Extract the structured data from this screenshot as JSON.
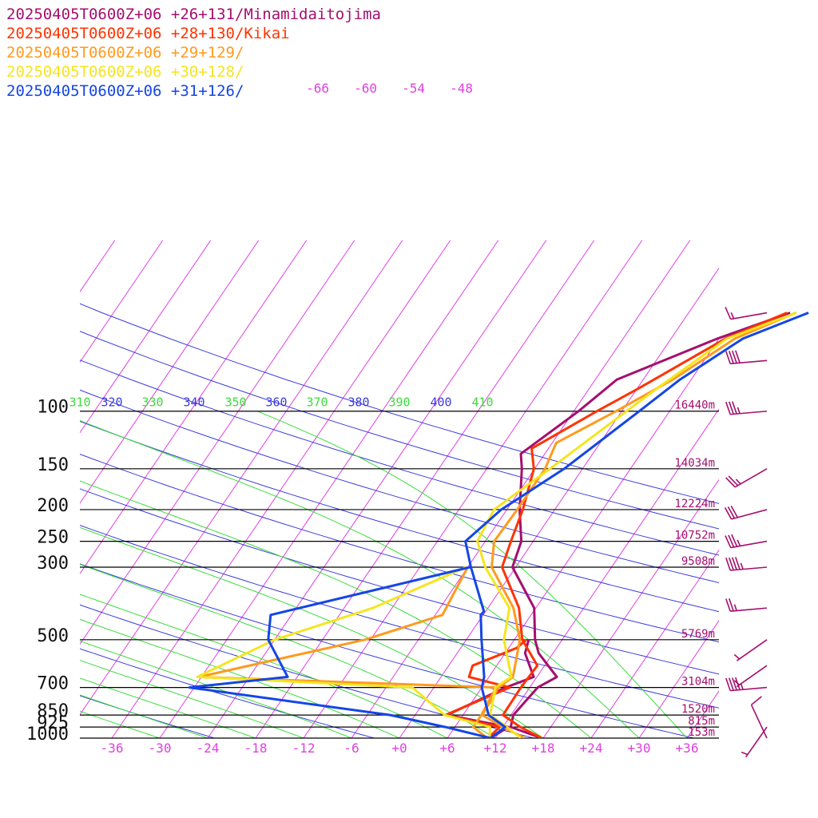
{
  "legend": [
    {
      "label": "20250405T0600Z+06 +26+131/Minamidaitojima",
      "color": "#a50f6e"
    },
    {
      "label": "20250405T0600Z+06 +28+130/Kikai",
      "color": "#ff3300"
    },
    {
      "label": "20250405T0600Z+06 +29+129/",
      "color": "#ff9a1e"
    },
    {
      "label": "20250405T0600Z+06 +30+128/",
      "color": "#f5e51e"
    },
    {
      "label": "20250405T0600Z+06 +31+126/",
      "color": "#1446e6"
    }
  ],
  "colors": {
    "isobar": "#000000",
    "isotherm": "#e040e0",
    "dry_adiabat": "#3c3cdc",
    "moist_adiabat": "#3cdc3c",
    "height_label": "#a50f6e",
    "wind_barb": "#a50f6e"
  },
  "chart_data": {
    "type": "line",
    "xlabel": "",
    "ylabel": "",
    "pressure_levels": [
      {
        "p": 1000,
        "label": "1000",
        "height": "153m"
      },
      {
        "p": 925,
        "label": "925",
        "height": "815m"
      },
      {
        "p": 850,
        "label": "850",
        "height": "1520m"
      },
      {
        "p": 700,
        "label": "700",
        "height": "3104m"
      },
      {
        "p": 500,
        "label": "500",
        "height": "5769m"
      },
      {
        "p": 300,
        "label": "300",
        "height": "9508m"
      },
      {
        "p": 250,
        "label": "250",
        "height": "10752m"
      },
      {
        "p": 200,
        "label": "200",
        "height": "12224m"
      },
      {
        "p": 150,
        "label": "150",
        "height": "14034m"
      },
      {
        "p": 100,
        "label": "100",
        "height": "16440m"
      }
    ],
    "temperature_ticks": [
      "-36",
      "-30",
      "-24",
      "-18",
      "-12",
      "-6",
      "+0",
      "+6",
      "+12",
      "+18",
      "+24",
      "+30",
      "+36"
    ],
    "upper_isotherm_labels": [
      "-66",
      "-60",
      "-54",
      "-48"
    ],
    "theta_labels": [
      "310",
      "320",
      "330",
      "340",
      "350",
      "360",
      "370",
      "380",
      "390",
      "400",
      "410"
    ],
    "x_range": [
      -40,
      40
    ],
    "series": [
      {
        "name": "20250405T0600Z+06 +26+131/Minamidaitojima",
        "temperature": [
          [
            1000,
            17.8
          ],
          [
            925,
            13.0
          ],
          [
            850,
            12.3
          ],
          [
            700,
            13.0
          ],
          [
            650,
            14.5
          ],
          [
            550,
            10.2
          ],
          [
            500,
            8.6
          ],
          [
            400,
            5.8
          ],
          [
            300,
            -0.4
          ],
          [
            250,
            -1.5
          ],
          [
            200,
            -4.4
          ],
          [
            150,
            -7.6
          ],
          [
            135,
            -9.0
          ],
          [
            100,
            -5.4
          ],
          [
            80,
            -3.3
          ],
          [
            60,
            5.8
          ],
          [
            50,
            12.7
          ]
        ],
        "dewpoint": [
          [
            1000,
            11.4
          ],
          [
            925,
            12.7
          ],
          [
            850,
            4.0
          ],
          [
            700,
            9.0
          ],
          [
            650,
            11.6
          ],
          [
            550,
            8.5
          ],
          [
            500,
            7.8
          ]
        ]
      },
      {
        "name": "20250405T0600Z+06 +28+130/Kikai",
        "temperature": [
          [
            1000,
            17.8
          ],
          [
            925,
            14.2
          ],
          [
            850,
            11.0
          ],
          [
            700,
            10.9
          ],
          [
            600,
            11.1
          ],
          [
            500,
            7.0
          ],
          [
            400,
            3.9
          ],
          [
            300,
            -1.7
          ],
          [
            250,
            -2.8
          ],
          [
            200,
            -4.0
          ],
          [
            150,
            -6.1
          ],
          [
            130,
            -8.1
          ],
          [
            100,
            -3.1
          ],
          [
            85,
            0.2
          ],
          [
            60,
            6.8
          ],
          [
            50,
            12.3
          ]
        ],
        "dewpoint": [
          [
            1000,
            11.1
          ],
          [
            925,
            11.6
          ],
          [
            850,
            3.8
          ],
          [
            700,
            9.5
          ],
          [
            650,
            3.5
          ],
          [
            600,
            3.0
          ],
          [
            530,
            7.0
          ],
          [
            500,
            7.5
          ]
        ]
      },
      {
        "name": "20250405T0600Z+06 +29+129/",
        "temperature": [
          [
            1000,
            15.7
          ],
          [
            925,
            12.0
          ],
          [
            850,
            8.4
          ],
          [
            700,
            8.1
          ],
          [
            650,
            9.0
          ],
          [
            500,
            6.7
          ],
          [
            400,
            3.2
          ],
          [
            300,
            -3.0
          ],
          [
            250,
            -4.9
          ],
          [
            200,
            -4.7
          ],
          [
            150,
            -4.7
          ],
          [
            125,
            -5.5
          ],
          [
            100,
            -0.7
          ],
          [
            80,
            3.7
          ],
          [
            60,
            8.0
          ],
          [
            50,
            13.4
          ]
        ],
        "dewpoint": [
          [
            1000,
            11.0
          ],
          [
            925,
            8.3
          ],
          [
            850,
            8.3
          ],
          [
            700,
            7.8
          ],
          [
            650,
            -30.3
          ],
          [
            500,
            -12.7
          ],
          [
            420,
            -5.1
          ],
          [
            300,
            -6.0
          ]
        ]
      },
      {
        "name": "20250405T0600Z+06 +30+128/",
        "temperature": [
          [
            1000,
            15.2
          ],
          [
            925,
            12.5
          ],
          [
            850,
            9.4
          ],
          [
            700,
            7.7
          ],
          [
            650,
            8.8
          ],
          [
            500,
            4.7
          ],
          [
            400,
            2.7
          ],
          [
            300,
            -3.8
          ],
          [
            250,
            -7.0
          ],
          [
            200,
            -7.6
          ],
          [
            150,
            -4.1
          ],
          [
            100,
            0.6
          ],
          [
            85,
            2.5
          ],
          [
            60,
            7.0
          ],
          [
            50,
            13.5
          ]
        ],
        "dewpoint": [
          [
            1000,
            11.3
          ],
          [
            925,
            10.4
          ],
          [
            850,
            3.7
          ],
          [
            700,
            -2.7
          ],
          [
            650,
            -30.5
          ],
          [
            500,
            -24.0
          ],
          [
            400,
            -14.4
          ],
          [
            300,
            -6.2
          ]
        ]
      },
      {
        "name": "20250405T0600Z+06 +31+126/",
        "temperature": [
          [
            1000,
            11.4
          ],
          [
            925,
            12.3
          ],
          [
            850,
            9.2
          ],
          [
            700,
            6.0
          ],
          [
            650,
            5.4
          ],
          [
            500,
            1.9
          ],
          [
            420,
            -0.3
          ],
          [
            410,
            -0.2
          ],
          [
            300,
            -5.6
          ],
          [
            250,
            -8.5
          ],
          [
            200,
            -6.7
          ],
          [
            150,
            -2.3
          ],
          [
            100,
            2.2
          ],
          [
            80,
            4.6
          ],
          [
            60,
            9.0
          ],
          [
            50,
            15.0
          ]
        ],
        "dewpoint": [
          [
            1000,
            11.4
          ],
          [
            925,
            4.8
          ],
          [
            850,
            -3.1
          ],
          [
            700,
            -30.6
          ],
          [
            650,
            -19.2
          ],
          [
            500,
            -24.8
          ],
          [
            420,
            -26.6
          ],
          [
            300,
            -5.7
          ]
        ]
      }
    ],
    "wind_barbs": [
      {
        "p": 1000,
        "direction_deg": 335,
        "speed_kt": 10
      },
      {
        "p": 925,
        "direction_deg": 215,
        "speed_kt": 5
      },
      {
        "p": 700,
        "direction_deg": 265,
        "speed_kt": 45
      },
      {
        "p": 600,
        "direction_deg": 235,
        "speed_kt": 5
      },
      {
        "p": 500,
        "direction_deg": 235,
        "speed_kt": 5
      },
      {
        "p": 400,
        "direction_deg": 265,
        "speed_kt": 25
      },
      {
        "p": 300,
        "direction_deg": 265,
        "speed_kt": 45
      },
      {
        "p": 250,
        "direction_deg": 260,
        "speed_kt": 35
      },
      {
        "p": 200,
        "direction_deg": 255,
        "speed_kt": 30
      },
      {
        "p": 150,
        "direction_deg": 240,
        "speed_kt": 25
      },
      {
        "p": 100,
        "direction_deg": 265,
        "speed_kt": 35
      },
      {
        "p": 70,
        "direction_deg": 265,
        "speed_kt": 40
      },
      {
        "p": 50,
        "direction_deg": 260,
        "speed_kt": 15
      }
    ]
  }
}
